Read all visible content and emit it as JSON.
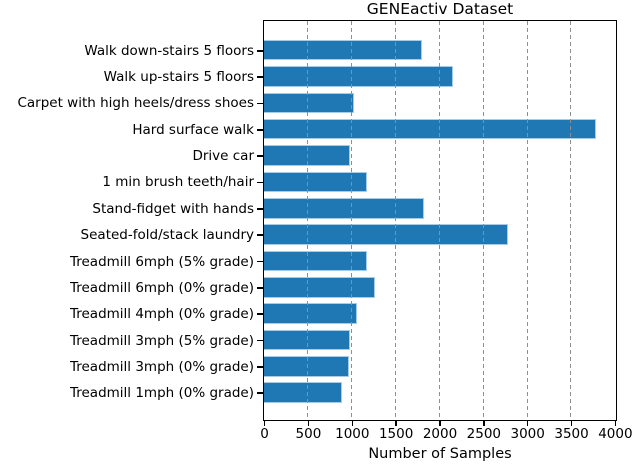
{
  "chart_data": {
    "type": "bar",
    "orientation": "horizontal",
    "title": "GENEactiv Dataset",
    "xlabel": "Number of Samples",
    "ylabel": "",
    "categories": [
      "Walk down-stairs 5 floors",
      "Walk up-stairs 5 floors",
      "Carpet with high heels/dress shoes",
      "Hard surface walk",
      "Drive car",
      "1 min brush teeth/hair",
      "Stand-fidget with hands",
      "Seated-fold/stack laundry",
      "Treadmill 6mph (5% grade)",
      "Treadmill 6mph (0% grade)",
      "Treadmill 4mph (0% grade)",
      "Treadmill 3mph (5% grade)",
      "Treadmill 3mph (0% grade)",
      "Treadmill 1mph (0% grade)"
    ],
    "values": [
      1800,
      2150,
      1030,
      3780,
      985,
      1170,
      1830,
      2780,
      1170,
      1260,
      1060,
      985,
      970,
      890
    ],
    "xlim": [
      0,
      4000
    ],
    "xticks": [
      0,
      500,
      1000,
      1500,
      2000,
      2500,
      3000,
      3500,
      4000
    ],
    "grid": "vertical-dashed-over-bars",
    "legend": "none",
    "colors": {
      "bar_fill": "#1f77b4",
      "bar_edge": "#a8cce4",
      "grid_line": "#8f8f8f",
      "spine": "#000000",
      "text": "#000000",
      "background": "#ffffff"
    }
  }
}
